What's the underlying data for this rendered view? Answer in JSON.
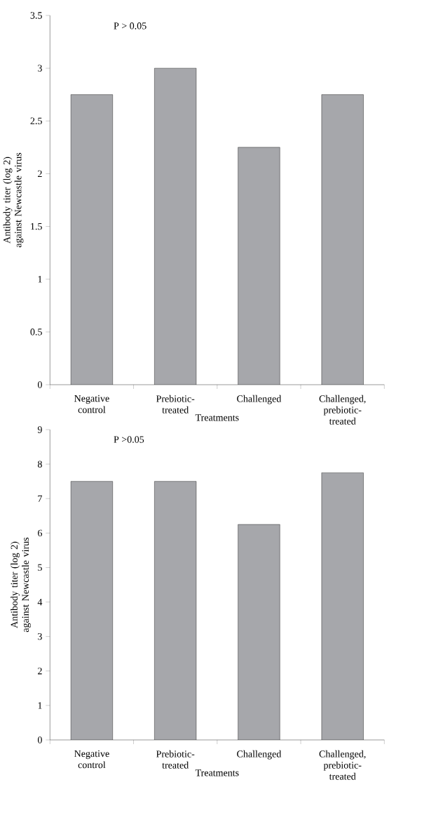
{
  "chart_data": [
    {
      "type": "bar",
      "categories": [
        "Negative control",
        "Prebiotic-treated",
        "Challenged",
        "Challenged, prebiotic-treated"
      ],
      "values": [
        2.75,
        3,
        2.25,
        2.75
      ],
      "color": "#a6a7ab",
      "ylim": [
        0,
        3.5
      ],
      "yticks": [
        0,
        0.5,
        1,
        1.5,
        2,
        2.5,
        3,
        3.5
      ],
      "xlabel": "Treatments",
      "ylabel": "Antibody titer (log 2) against Newcastle virus",
      "annotations": [
        "P > 0.05"
      ]
    },
    {
      "type": "bar",
      "categories": [
        "Negative control",
        "Prebiotic-treated",
        "Challenged",
        "Challenged, prebiotic-treated"
      ],
      "values": [
        7.5,
        7.5,
        6.25,
        7.75
      ],
      "color": "#a6a7ab",
      "ylim": [
        0,
        9
      ],
      "yticks": [
        0,
        1,
        2,
        3,
        4,
        5,
        6,
        7,
        8,
        9
      ],
      "xlabel": "Treatments",
      "ylabel": "Antibody titer (log 2) against Newcastle virus",
      "annotations": [
        "P >0.05"
      ]
    }
  ]
}
